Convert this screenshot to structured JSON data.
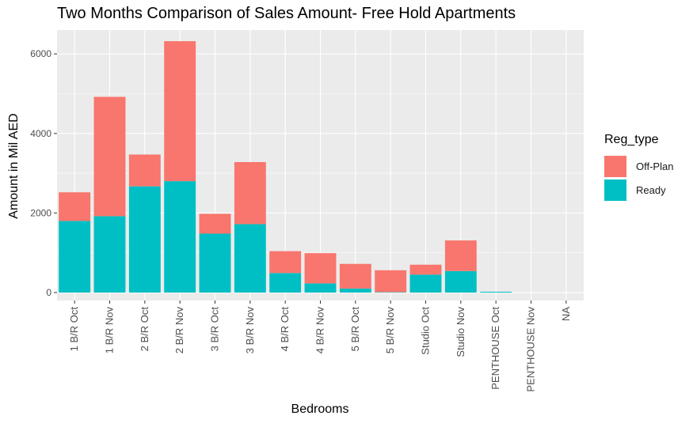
{
  "chart_data": {
    "type": "bar",
    "stacked": true,
    "title": "Two Months Comparison of Sales Amount- Free Hold Apartments",
    "xlabel": "Bedrooms",
    "ylabel": "Amount in Mil AED",
    "ylim": [
      -200,
      6600
    ],
    "yticks": [
      0,
      2000,
      4000,
      6000
    ],
    "grid": true,
    "legend_position": "right",
    "legend_title": "Reg_type",
    "categories": [
      "1 B/R Oct",
      "1 B/R Nov",
      "2 B/R Oct",
      "2 B/R Nov",
      "3 B/R Oct",
      "3 B/R Nov",
      "4 B/R Oct",
      "4 B/R Nov",
      "5 B/R Oct",
      "5 B/R Nov",
      "Studio Oct",
      "Studio Nov",
      "PENTHOUSE Oct",
      "PENTHOUSE Nov",
      "NA"
    ],
    "series": [
      {
        "name": "Off-Plan",
        "color": "#F8766D",
        "values": [
          720,
          3000,
          800,
          3520,
          500,
          1560,
          550,
          760,
          620,
          550,
          250,
          770,
          0,
          0,
          0
        ]
      },
      {
        "name": "Ready",
        "color": "#00BFC4",
        "values": [
          1800,
          1920,
          2670,
          2800,
          1480,
          1720,
          490,
          230,
          100,
          10,
          450,
          540,
          20,
          0,
          0
        ]
      }
    ]
  }
}
